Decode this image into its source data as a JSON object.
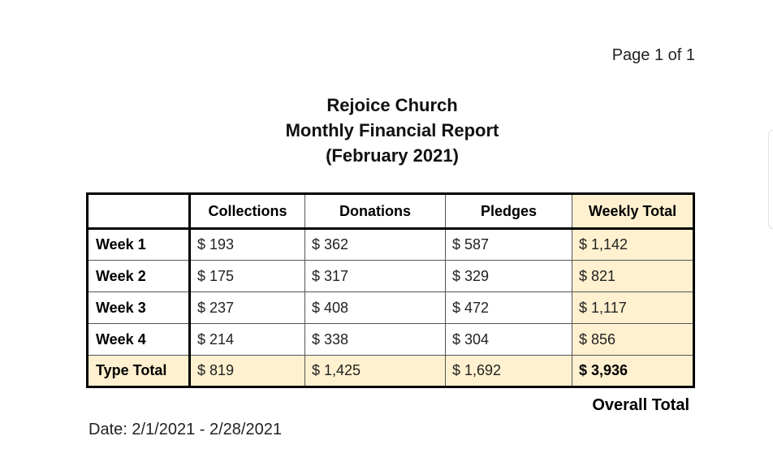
{
  "page_number": "Page 1 of 1",
  "title": {
    "line1": "Rejoice Church",
    "line2": "Monthly Financial Report",
    "line3": "(February 2021)"
  },
  "table": {
    "headers": [
      "",
      "Collections",
      "Donations",
      "Pledges",
      "Weekly Total"
    ],
    "rows": [
      {
        "label": "Week 1",
        "collections": "$ 193",
        "donations": "$ 362",
        "pledges": "$ 587",
        "weekly_total": "$ 1,142"
      },
      {
        "label": "Week 2",
        "collections": "$ 175",
        "donations": "$ 317",
        "pledges": "$ 329",
        "weekly_total": "$ 821"
      },
      {
        "label": "Week 3",
        "collections": "$ 237",
        "donations": "$ 408",
        "pledges": "$ 472",
        "weekly_total": "$ 1,117"
      },
      {
        "label": "Week 4",
        "collections": "$ 214",
        "donations": "$ 338",
        "pledges": "$ 304",
        "weekly_total": "$ 856"
      }
    ],
    "total_row": {
      "label": "Type Total",
      "collections": "$ 819",
      "donations": "$ 1,425",
      "pledges": "$ 1,692",
      "weekly_total": "$ 3,936"
    }
  },
  "overall_total_label": "Overall Total",
  "date_range": "Date: 2/1/2021 - 2/28/2021",
  "colors": {
    "highlight": "#fff1cf",
    "border": "#000000"
  }
}
